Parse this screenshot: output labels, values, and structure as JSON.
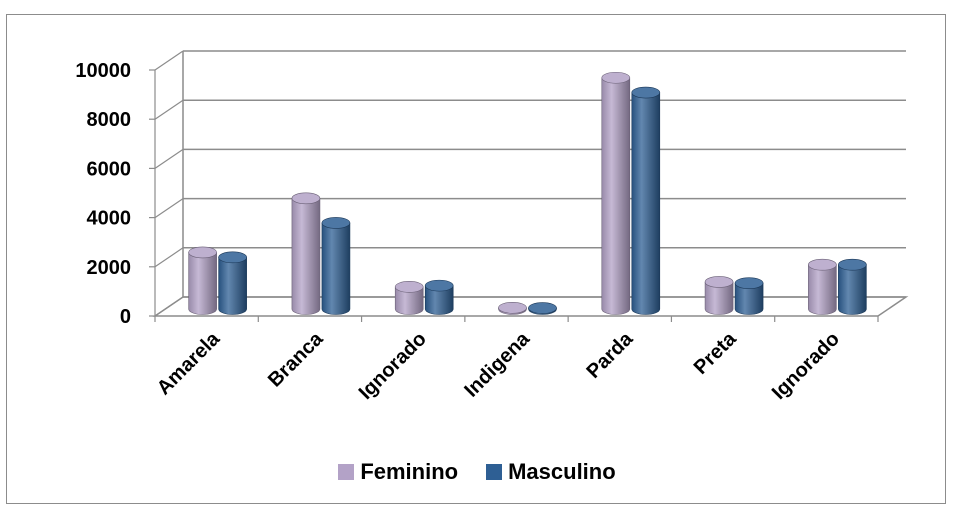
{
  "chart_data": {
    "type": "bar",
    "categories": [
      "Amarela",
      "Branca",
      "Ignorado",
      "Indigena",
      "Parda",
      "Preta",
      "Ignorado"
    ],
    "series": [
      {
        "name": "Feminino",
        "values": [
          2300,
          4500,
          900,
          50,
          9400,
          1100,
          1800
        ]
      },
      {
        "name": "Masculino",
        "values": [
          2100,
          3500,
          950,
          40,
          8800,
          1050,
          1800
        ]
      }
    ],
    "y_ticks": [
      "0",
      "2000",
      "4000",
      "6000",
      "8000",
      "10000"
    ],
    "ylim": [
      0,
      10000
    ],
    "grid": true,
    "legend_position": "bottom",
    "colors": {
      "Feminino": "#b3a2c7",
      "Masculino": "#2e5f94"
    }
  }
}
